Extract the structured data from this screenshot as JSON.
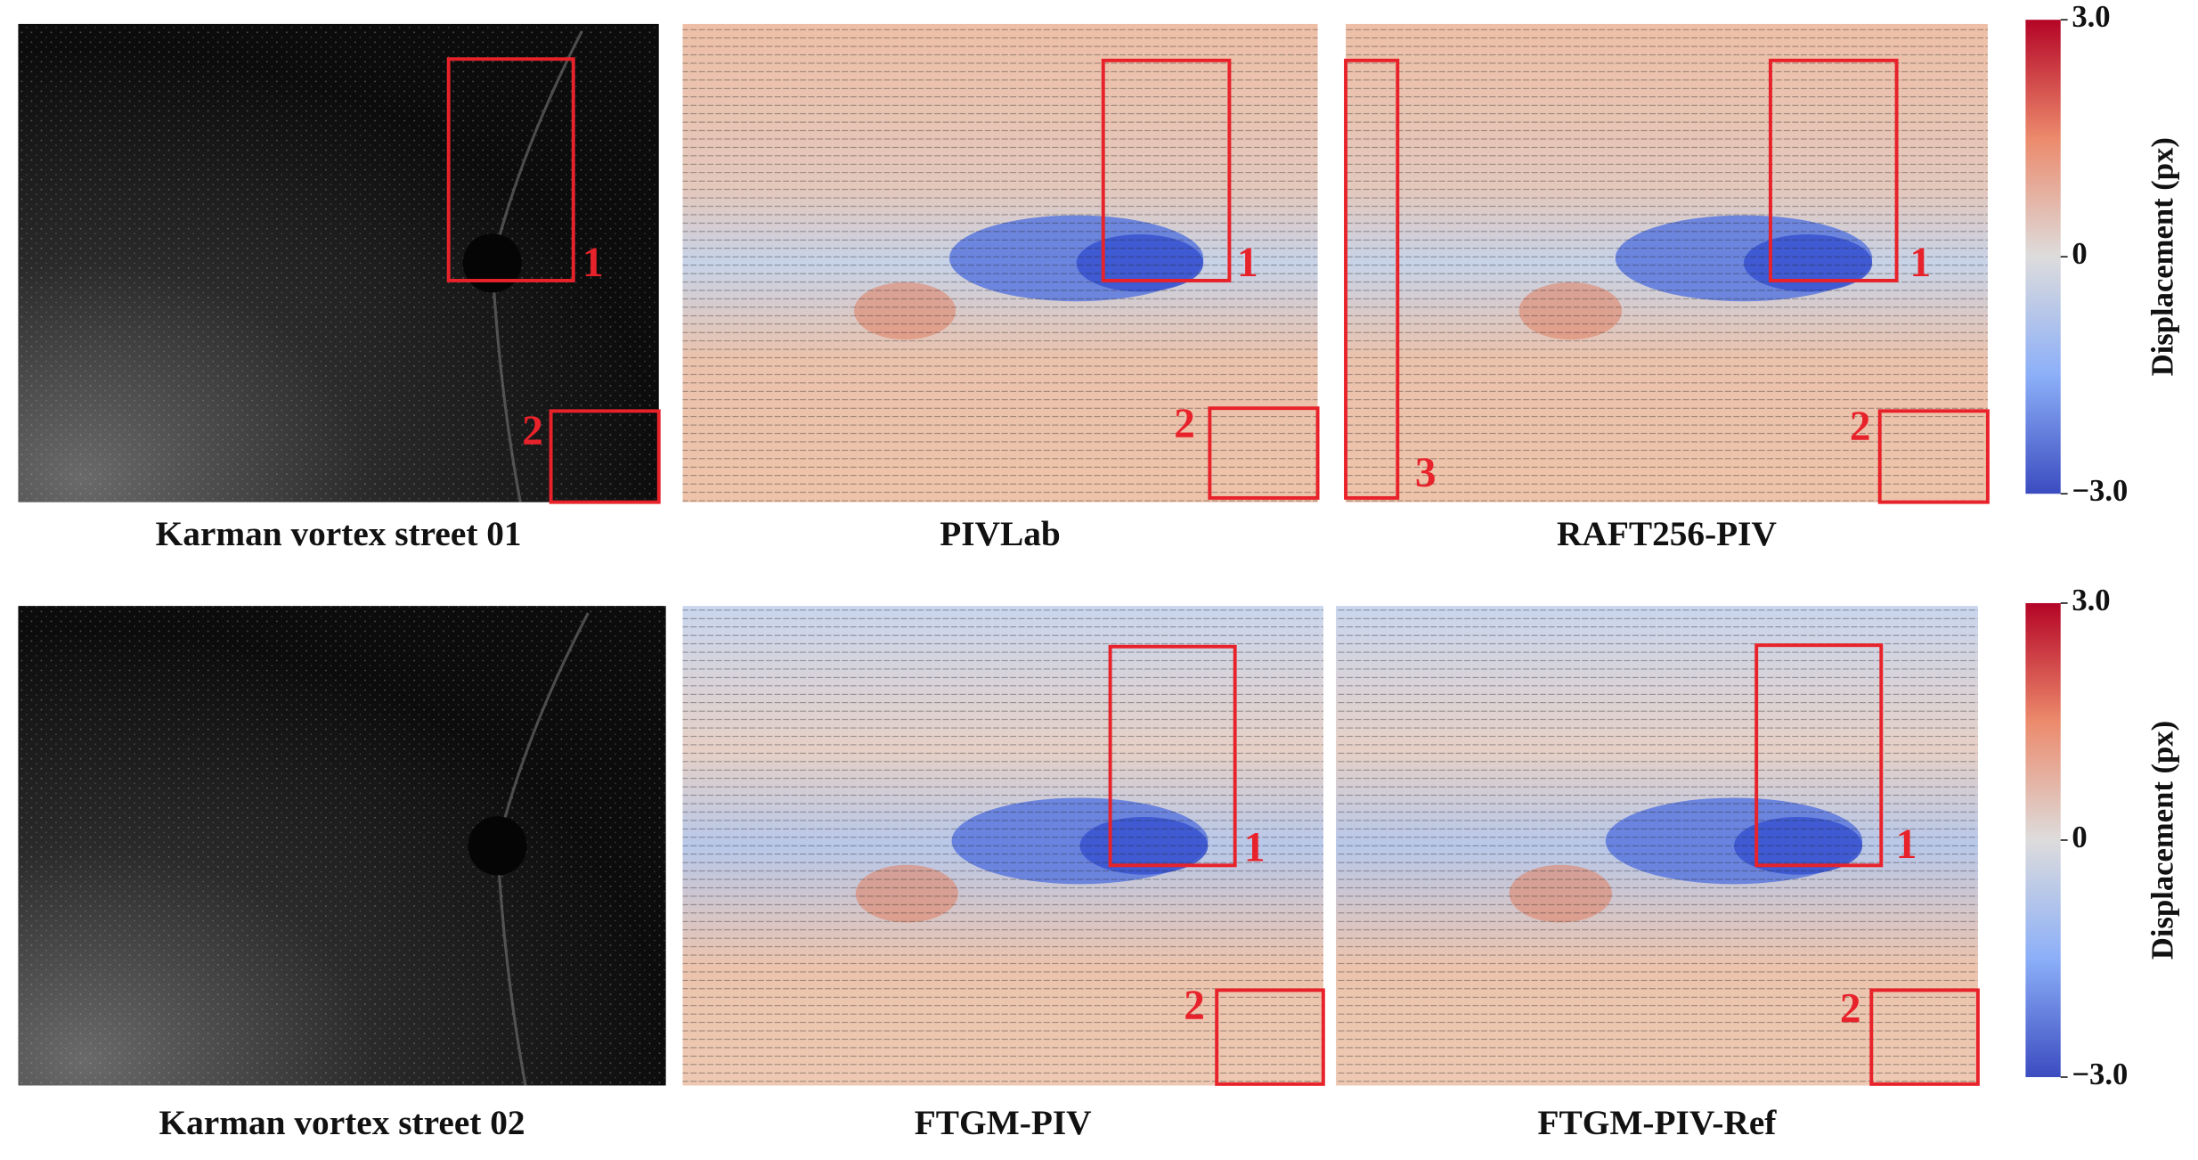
{
  "figure": {
    "rows": [
      {
        "panels": [
          {
            "caption": "Karman vortex street 01",
            "boxes": [
              "1",
              "2"
            ]
          },
          {
            "caption": "PIVLab",
            "boxes": [
              "1",
              "2"
            ]
          },
          {
            "caption": "RAFT256-PIV",
            "boxes": [
              "1",
              "2",
              "3"
            ]
          }
        ],
        "colorbar": {
          "label": "Displacement (px)",
          "lim": [
            -3,
            3
          ],
          "ticks": [
            {
              "value": 3,
              "label": "3.0"
            },
            0,
            {
              "value": -3,
              "label": "−3.0"
            }
          ]
        }
      },
      {
        "panels": [
          {
            "caption": "Karman vortex street 02",
            "boxes": []
          },
          {
            "caption": "FTGM-PIV",
            "boxes": [
              "1",
              "2"
            ]
          },
          {
            "caption": "FTGM-PIV-Ref",
            "boxes": [
              "1",
              "2"
            ]
          }
        ],
        "colorbar": {
          "label": "Displacement (px)",
          "lim": [
            -3,
            3
          ],
          "ticks": [
            {
              "value": 3,
              "label": "3.0"
            },
            0,
            {
              "value": -3,
              "label": "−3.0"
            }
          ]
        }
      }
    ]
  }
}
